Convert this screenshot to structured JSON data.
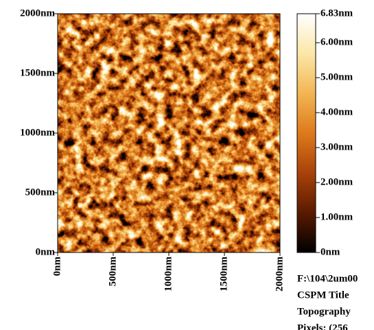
{
  "chart_data": {
    "type": "image",
    "xlim": [
      0,
      2000
    ],
    "ylim": [
      0,
      2000
    ],
    "xticks": [
      {
        "value": 0,
        "label": "0nm"
      },
      {
        "value": 500,
        "label": "500nm"
      },
      {
        "value": 1000,
        "label": "1000nm"
      },
      {
        "value": 1500,
        "label": "1500nm"
      },
      {
        "value": 2000,
        "label": "2000nm"
      }
    ],
    "yticks": [
      {
        "value": 0,
        "label": "0nm"
      },
      {
        "value": 500,
        "label": "500nm"
      },
      {
        "value": 1000,
        "label": "1000nm"
      },
      {
        "value": 1500,
        "label": "1500nm"
      },
      {
        "value": 2000,
        "label": "2000nm"
      }
    ],
    "colormap": [
      "#000000",
      "#5a1a00",
      "#a8420a",
      "#dd7a1c",
      "#f3b553",
      "#fbe7a8",
      "#ffffff"
    ],
    "colorbar": {
      "lim": [
        0,
        6.83
      ],
      "ticks": [
        {
          "value": 0,
          "label": "0nm"
        },
        {
          "value": 1,
          "label": "1.00nm"
        },
        {
          "value": 2,
          "label": "2.00nm"
        },
        {
          "value": 3,
          "label": "3.00nm"
        },
        {
          "value": 4,
          "label": "4.00nm"
        },
        {
          "value": 5,
          "label": "5.00nm"
        },
        {
          "value": 6,
          "label": "6.00nm"
        },
        {
          "value": 6.83,
          "label": "6.83nm"
        }
      ]
    },
    "info": [
      "F:\\104\\2um00",
      "CSPM Title",
      "Topography",
      "Pixels: (256"
    ]
  }
}
